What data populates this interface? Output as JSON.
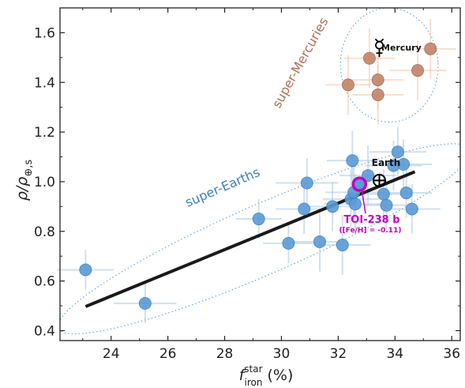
{
  "chart_data": {
    "type": "scatter",
    "xlabel": "f_iron^star (%)",
    "xlabel_parts": {
      "main": "f",
      "sup": "star",
      "sub": "iron",
      "unit": "(%)"
    },
    "ylabel": "ρ/ρ⊕,s",
    "ylabel_parts": {
      "main": "ρ/ρ",
      "sub": "⊕,s"
    },
    "xlim": [
      22.2,
      36.3
    ],
    "ylim": [
      0.36,
      1.7
    ],
    "x_ticks": [
      "24",
      "26",
      "28",
      "30",
      "32",
      "34",
      "36"
    ],
    "y_ticks": [
      "0.4",
      "0.6",
      "0.8",
      "1.0",
      "1.2",
      "1.4",
      "1.6"
    ],
    "grid": false,
    "colors": {
      "super_earths": "#5b9bd5",
      "super_mercuries": "#c0846a",
      "super_earth_label": "#3a7fc1",
      "super_mercury_label": "#b0705a",
      "fit_line": "#1a1a1a",
      "highlight": "#c000c0",
      "earth_label": "#111111"
    },
    "series": [
      {
        "label_text": "super-Earths",
        "points": [
          {
            "x": 23.1,
            "y": 0.645,
            "xerr": 1.0,
            "yerr": 0.08
          },
          {
            "x": 25.2,
            "y": 0.51,
            "xerr": 1.1,
            "yerr": 0.08
          },
          {
            "x": 29.2,
            "y": 0.85,
            "xerr": 0.8,
            "yerr": 0.08
          },
          {
            "x": 30.25,
            "y": 0.752,
            "xerr": 0.9,
            "yerr": 0.08
          },
          {
            "x": 30.8,
            "y": 0.89,
            "xerr": 1.0,
            "yerr": 0.1
          },
          {
            "x": 30.9,
            "y": 0.995,
            "xerr": 1.1,
            "yerr": 0.1
          },
          {
            "x": 31.35,
            "y": 0.758,
            "xerr": 0.9,
            "yerr": 0.12
          },
          {
            "x": 31.8,
            "y": 0.9,
            "xerr": 1.0,
            "yerr": 0.1
          },
          {
            "x": 32.15,
            "y": 0.745,
            "xerr": 1.0,
            "yerr": 0.12
          },
          {
            "x": 32.45,
            "y": 0.93,
            "xerr": 1.0,
            "yerr": 0.12
          },
          {
            "x": 32.5,
            "y": 1.085,
            "xerr": 0.9,
            "yerr": 0.12
          },
          {
            "x": 32.55,
            "y": 0.957,
            "xerr": 1.0,
            "yerr": 0.12
          },
          {
            "x": 32.6,
            "y": 0.91,
            "xerr": 1.1,
            "yerr": 0.12
          },
          {
            "x": 33.05,
            "y": 1.025,
            "xerr": 1.0,
            "yerr": 0.12
          },
          {
            "x": 33.6,
            "y": 0.95,
            "xerr": 1.0,
            "yerr": 0.1
          },
          {
            "x": 33.7,
            "y": 0.905,
            "xerr": 0.8,
            "yerr": 0.1
          },
          {
            "x": 33.95,
            "y": 1.065,
            "xerr": 1.0,
            "yerr": 0.1
          },
          {
            "x": 34.1,
            "y": 1.12,
            "xerr": 1.0,
            "yerr": 0.1
          },
          {
            "x": 34.3,
            "y": 1.07,
            "xerr": 1.0,
            "yerr": 0.1
          },
          {
            "x": 34.4,
            "y": 0.955,
            "xerr": 0.9,
            "yerr": 0.1
          },
          {
            "x": 34.6,
            "y": 0.89,
            "xerr": 1.0,
            "yerr": 0.1
          }
        ]
      },
      {
        "label_text": "super-Mercuries",
        "points": [
          {
            "x": 32.35,
            "y": 1.39,
            "xerr": 0.8,
            "yerr": 0.12
          },
          {
            "x": 33.1,
            "y": 1.497,
            "xerr": 0.9,
            "yerr": 0.12
          },
          {
            "x": 33.4,
            "y": 1.41,
            "xerr": 0.9,
            "yerr": 0.12
          },
          {
            "x": 33.4,
            "y": 1.35,
            "xerr": 0.9,
            "yerr": 0.12
          },
          {
            "x": 34.8,
            "y": 1.448,
            "xerr": 1.0,
            "yerr": 0.12
          },
          {
            "x": 35.25,
            "y": 1.535,
            "xerr": 0.9,
            "yerr": 0.12
          }
        ]
      }
    ],
    "fit_line": {
      "x": [
        23.1,
        34.7
      ],
      "y": [
        0.497,
        1.04
      ]
    },
    "ellipses": [
      {
        "cx": 29.4,
        "cy": 0.77,
        "rx": 7.9,
        "ry": 0.14,
        "angle_deg": -23.5
      },
      {
        "cx": 33.8,
        "cy": 1.47,
        "rx": 1.72,
        "ry": 0.23,
        "angle_deg": -2
      }
    ],
    "highlight": {
      "x": 32.75,
      "y": 0.99,
      "label": "TOI-238 b",
      "sublabel": "([Fe/H] = -0.11)"
    },
    "earth": {
      "x": 33.45,
      "y": 1.005,
      "label": "Earth"
    },
    "mercury": {
      "x": 33.45,
      "y": 1.537,
      "label": "Mercury"
    }
  }
}
